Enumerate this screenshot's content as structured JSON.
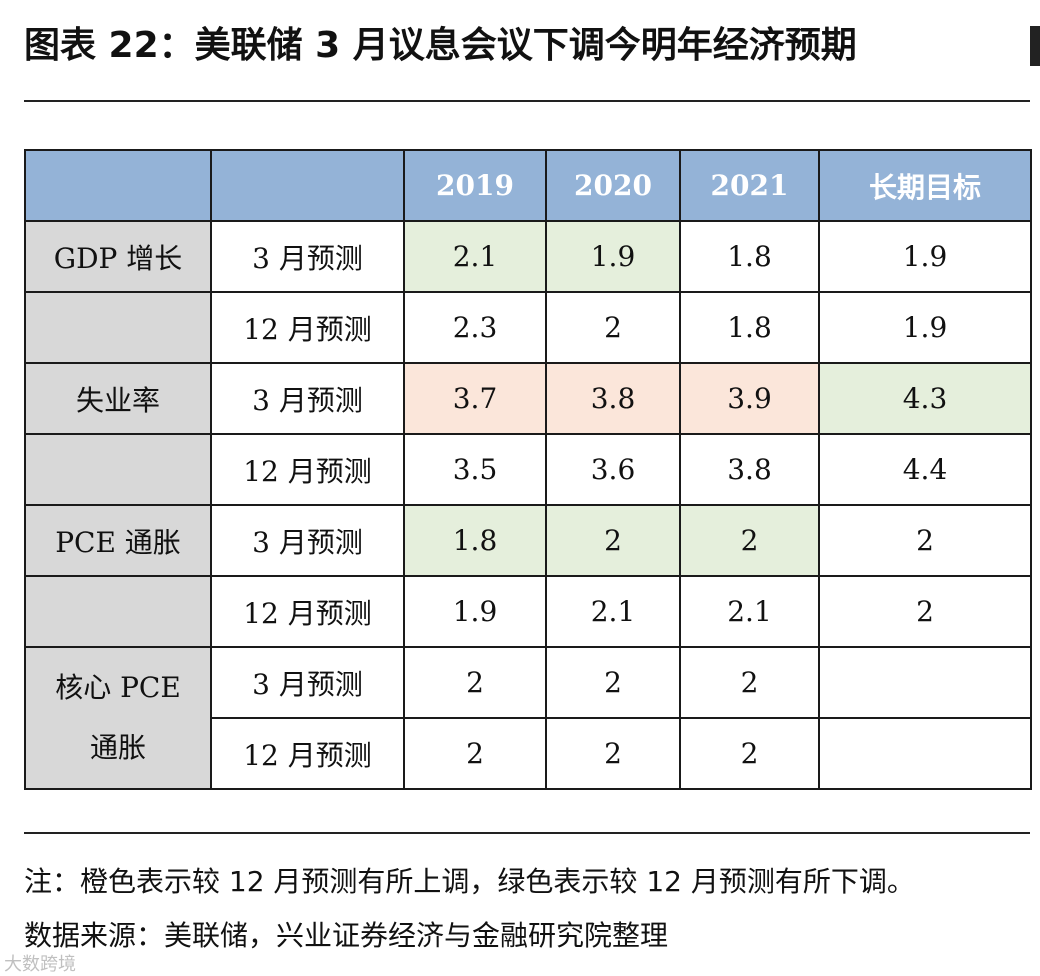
{
  "title": "图表 22：美联储 3 月议息会议下调今明年经济预期",
  "table": {
    "headers": [
      "",
      "",
      "2019",
      "2020",
      "2021",
      "长期目标"
    ],
    "groups": [
      {
        "label": "GDP 增长",
        "rows": [
          {
            "label": "3 月预测",
            "values": [
              "2.1",
              "1.9",
              "1.8",
              "1.9"
            ],
            "marks": [
              "down",
              "down",
              "",
              ""
            ]
          },
          {
            "label": "12 月预测",
            "values": [
              "2.3",
              "2",
              "1.8",
              "1.9"
            ],
            "marks": [
              "",
              "",
              "",
              ""
            ]
          }
        ]
      },
      {
        "label": "失业率",
        "rows": [
          {
            "label": "3 月预测",
            "values": [
              "3.7",
              "3.8",
              "3.9",
              "4.3"
            ],
            "marks": [
              "up",
              "up",
              "up",
              "down"
            ]
          },
          {
            "label": "12 月预测",
            "values": [
              "3.5",
              "3.6",
              "3.8",
              "4.4"
            ],
            "marks": [
              "",
              "",
              "",
              ""
            ]
          }
        ]
      },
      {
        "label": "PCE 通胀",
        "rows": [
          {
            "label": "3 月预测",
            "values": [
              "1.8",
              "2",
              "2",
              "2"
            ],
            "marks": [
              "down",
              "down",
              "down",
              ""
            ]
          },
          {
            "label": "12 月预测",
            "values": [
              "1.9",
              "2.1",
              "2.1",
              "2"
            ],
            "marks": [
              "",
              "",
              "",
              ""
            ]
          }
        ]
      },
      {
        "label": "核心 PCE 通胀",
        "rows": [
          {
            "label": "3 月预测",
            "values": [
              "2",
              "2",
              "2",
              ""
            ],
            "marks": [
              "",
              "",
              "",
              ""
            ]
          },
          {
            "label": "12 月预测",
            "values": [
              "2",
              "2",
              "2",
              ""
            ],
            "marks": [
              "",
              "",
              "",
              ""
            ]
          }
        ]
      }
    ]
  },
  "notes": {
    "legend": "注：橙色表示较 12 月预测有所上调，绿色表示较 12 月预测有所下调。",
    "source": "数据来源：美联储，兴业证券经济与金融研究院整理"
  },
  "watermark": "大数跨境",
  "colors": {
    "header": "#94b3d7",
    "label_cell": "#d8d8d8",
    "up": "#fbe6da",
    "down": "#e5efdc"
  }
}
